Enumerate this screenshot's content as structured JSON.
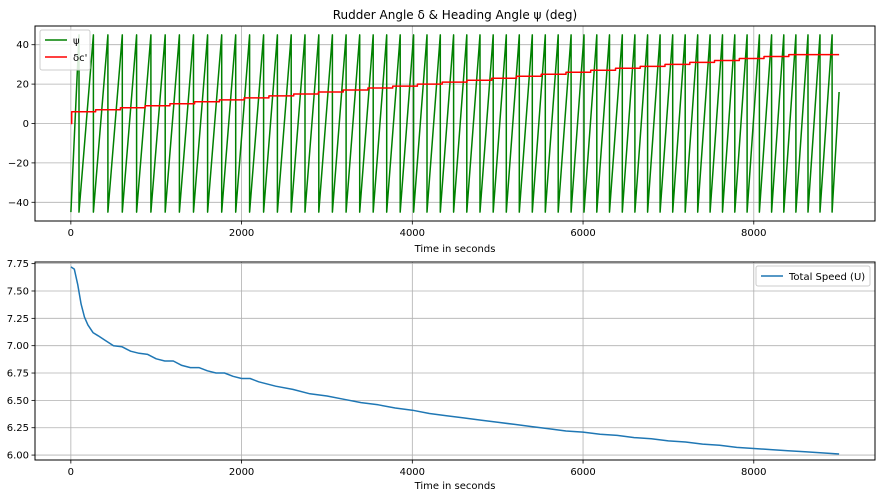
{
  "chart_data": [
    {
      "type": "line",
      "title": "Rudder Angle δ & Heading Angle ψ (deg)",
      "xlabel": "Time in seconds",
      "ylabel": "",
      "xlim": [
        -420,
        9420
      ],
      "ylim": [
        -49.5,
        49.5
      ],
      "xticks": [
        0,
        2000,
        4000,
        6000,
        8000
      ],
      "yticks": [
        -40,
        -20,
        0,
        20,
        40
      ],
      "grid": true,
      "legend_position": "upper-left",
      "series": [
        {
          "name": "ψ",
          "color": "#008000",
          "pattern": "sawtooth",
          "min": -45,
          "max": 45,
          "x_start": 0,
          "x_end": 9000,
          "first_wrap_x": 95,
          "period_start": 170,
          "period_end": 140,
          "end_value": 16
        },
        {
          "name": "δc'",
          "color": "#ff0000",
          "pattern": "step",
          "steps": [
            [
              0,
              0
            ],
            [
              10,
              6
            ],
            [
              290,
              7
            ],
            [
              580,
              8
            ],
            [
              870,
              9
            ],
            [
              1160,
              10
            ],
            [
              1450,
              11
            ],
            [
              1740,
              12
            ],
            [
              2030,
              13
            ],
            [
              2320,
              14
            ],
            [
              2610,
              15
            ],
            [
              2900,
              16
            ],
            [
              3190,
              17
            ],
            [
              3480,
              18
            ],
            [
              3770,
              19
            ],
            [
              4060,
              20
            ],
            [
              4350,
              21
            ],
            [
              4640,
              22
            ],
            [
              4930,
              23
            ],
            [
              5220,
              24
            ],
            [
              5510,
              25
            ],
            [
              5800,
              26
            ],
            [
              6090,
              27
            ],
            [
              6380,
              28
            ],
            [
              6670,
              29
            ],
            [
              6960,
              30
            ],
            [
              7250,
              31
            ],
            [
              7540,
              32
            ],
            [
              7830,
              33
            ],
            [
              8120,
              34
            ],
            [
              8410,
              35
            ],
            [
              9000,
              35
            ]
          ]
        }
      ]
    },
    {
      "type": "line",
      "title": "",
      "xlabel": "Time in seconds",
      "ylabel": "",
      "xlim": [
        -420,
        9420
      ],
      "ylim": [
        5.955,
        7.765
      ],
      "xticks": [
        0,
        2000,
        4000,
        6000,
        8000
      ],
      "yticks": [
        6.0,
        6.25,
        6.5,
        6.75,
        7.0,
        7.25,
        7.5,
        7.75
      ],
      "grid": true,
      "legend_position": "upper-right",
      "series": [
        {
          "name": "Total Speed (U)",
          "color": "#1f77b4",
          "x": [
            0,
            40,
            80,
            120,
            160,
            200,
            260,
            320,
            400,
            500,
            600,
            700,
            800,
            900,
            1000,
            1100,
            1200,
            1300,
            1400,
            1500,
            1600,
            1700,
            1800,
            1900,
            2000,
            2100,
            2200,
            2400,
            2600,
            2800,
            3000,
            3200,
            3400,
            3600,
            3800,
            4000,
            4200,
            4400,
            4600,
            4800,
            5000,
            5200,
            5400,
            5600,
            5800,
            6000,
            6200,
            6400,
            6600,
            6800,
            7000,
            7200,
            7400,
            7600,
            7800,
            8000,
            8200,
            8400,
            8600,
            8800,
            9000
          ],
          "values": [
            7.72,
            7.7,
            7.56,
            7.38,
            7.26,
            7.19,
            7.12,
            7.09,
            7.05,
            7.0,
            6.99,
            6.95,
            6.93,
            6.92,
            6.88,
            6.86,
            6.86,
            6.82,
            6.8,
            6.8,
            6.77,
            6.75,
            6.75,
            6.72,
            6.7,
            6.7,
            6.67,
            6.63,
            6.6,
            6.56,
            6.54,
            6.51,
            6.48,
            6.46,
            6.43,
            6.41,
            6.38,
            6.36,
            6.34,
            6.32,
            6.3,
            6.28,
            6.26,
            6.24,
            6.22,
            6.21,
            6.19,
            6.18,
            6.16,
            6.15,
            6.13,
            6.12,
            6.1,
            6.09,
            6.07,
            6.06,
            6.05,
            6.04,
            6.03,
            6.02,
            6.01
          ]
        }
      ]
    }
  ]
}
